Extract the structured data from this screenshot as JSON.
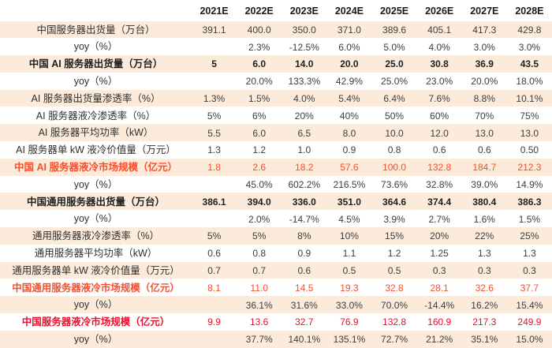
{
  "chart_data": {
    "type": "table",
    "title": "",
    "columns": [
      "2021E",
      "2022E",
      "2023E",
      "2024E",
      "2025E",
      "2026E",
      "2027E",
      "2028E"
    ],
    "corner_label": "",
    "rows": [
      {
        "label": "中国服务器出货量（万台）",
        "style": "normal",
        "values": [
          "391.1",
          "400.0",
          "350.0",
          "371.0",
          "389.6",
          "405.1",
          "417.3",
          "429.8"
        ]
      },
      {
        "label": "yoy（%）",
        "style": "normal",
        "values": [
          "",
          "2.3%",
          "-12.5%",
          "6.0%",
          "5.0%",
          "4.0%",
          "3.0%",
          "3.0%"
        ]
      },
      {
        "label": "中国 AI 服务器出货量（万台）",
        "style": "bold",
        "values": [
          "5",
          "6.0",
          "14.0",
          "20.0",
          "25.0",
          "30.8",
          "36.9",
          "43.5"
        ]
      },
      {
        "label": "yoy（%）",
        "style": "normal",
        "values": [
          "",
          "20.0%",
          "133.3%",
          "42.9%",
          "25.0%",
          "23.0%",
          "20.0%",
          "18.0%"
        ]
      },
      {
        "label": "AI 服务器出货量渗透率（%）",
        "style": "normal",
        "values": [
          "1.3%",
          "1.5%",
          "4.0%",
          "5.4%",
          "6.4%",
          "7.6%",
          "8.8%",
          "10.1%"
        ]
      },
      {
        "label": "AI 服务器液冷渗透率（%）",
        "style": "normal",
        "values": [
          "5%",
          "6%",
          "20%",
          "40%",
          "50%",
          "60%",
          "70%",
          "75%"
        ]
      },
      {
        "label": "AI 服务器平均功率（kW）",
        "style": "normal",
        "values": [
          "5.5",
          "6.0",
          "6.5",
          "8.0",
          "10.0",
          "12.0",
          "13.0",
          "13.0"
        ]
      },
      {
        "label": "AI 服务器单 kW 液冷价值量（万元）",
        "style": "normal",
        "values": [
          "1.3",
          "1.2",
          "1.0",
          "0.9",
          "0.8",
          "0.6",
          "0.6",
          "0.50"
        ]
      },
      {
        "label": "中国 AI 服务器液冷市场规模（亿元）",
        "style": "orange",
        "values": [
          "1.8",
          "2.6",
          "18.2",
          "57.6",
          "100.0",
          "132.8",
          "184.7",
          "212.3"
        ]
      },
      {
        "label": "yoy（%）",
        "style": "normal",
        "values": [
          "",
          "45.0%",
          "602.2%",
          "216.5%",
          "73.6%",
          "32.8%",
          "39.0%",
          "14.9%"
        ]
      },
      {
        "label": "中国通用服务器出货量（万台）",
        "style": "bold",
        "values": [
          "386.1",
          "394.0",
          "336.0",
          "351.0",
          "364.6",
          "374.4",
          "380.4",
          "386.3"
        ]
      },
      {
        "label": "yoy（%）",
        "style": "normal",
        "values": [
          "",
          "2.0%",
          "-14.7%",
          "4.5%",
          "3.9%",
          "2.7%",
          "1.6%",
          "1.5%"
        ]
      },
      {
        "label": "通用服务器液冷渗透率（%）",
        "style": "normal",
        "values": [
          "5%",
          "5%",
          "8%",
          "10%",
          "15%",
          "20%",
          "22%",
          "25%"
        ]
      },
      {
        "label": "通用服务器平均功率（kW）",
        "style": "normal",
        "values": [
          "0.6",
          "0.8",
          "0.9",
          "1.1",
          "1.2",
          "1.25",
          "1.3",
          "1.3"
        ]
      },
      {
        "label": "通用服务器单 kW 液冷价值量（万元）",
        "style": "normal",
        "values": [
          "0.7",
          "0.7",
          "0.6",
          "0.5",
          "0.5",
          "0.3",
          "0.3",
          "0.3"
        ]
      },
      {
        "label": "中国通用服务器液冷市场规模（亿元）",
        "style": "orange",
        "values": [
          "8.1",
          "11.0",
          "14.5",
          "19.3",
          "32.8",
          "28.1",
          "32.6",
          "37.7"
        ]
      },
      {
        "label": "yoy（%）",
        "style": "normal",
        "values": [
          "",
          "36.1%",
          "31.6%",
          "33.0%",
          "70.0%",
          "-14.4%",
          "16.2%",
          "15.4%"
        ]
      },
      {
        "label": "中国服务器液冷市场规模（亿元）",
        "style": "red",
        "values": [
          "9.9",
          "13.6",
          "32.7",
          "76.9",
          "132.8",
          "160.9",
          "217.3",
          "249.9"
        ]
      },
      {
        "label": "yoy（%）",
        "style": "normal",
        "values": [
          "",
          "37.7%",
          "140.1%",
          "135.1%",
          "72.7%",
          "21.2%",
          "35.1%",
          "15.0%"
        ]
      }
    ],
    "colors": {
      "band_fill": "#FCEBDA",
      "orange_red_text": "#FB4D2B",
      "red_text": "#E8112D",
      "body_text": "#3d3d3d",
      "header_text": "#1a1a1a"
    },
    "layout": {
      "striping": "odd data rows (1st, 3rd, ...) have peach band fill",
      "alignment": "all cells centered",
      "grid": "off"
    }
  }
}
